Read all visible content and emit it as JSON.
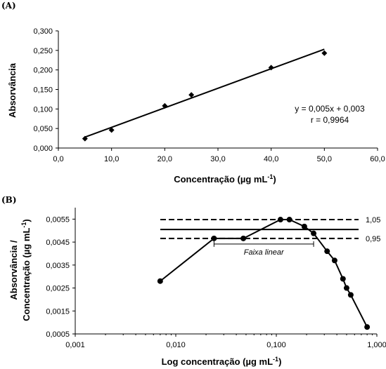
{
  "chart_data": [
    {
      "panel": "(A)",
      "type": "scatter",
      "xlabel": "Concentração (µg mL",
      "xlabel_sup": "-1",
      "xlabel_end": ")",
      "ylabel": "Absorvância",
      "xlim": [
        0,
        60
      ],
      "ylim": [
        0,
        0.3
      ],
      "x_ticks": [
        0,
        10,
        20,
        30,
        40,
        50,
        60
      ],
      "x_tick_labels": [
        "0,0",
        "10,0",
        "20,0",
        "30,0",
        "40,0",
        "50,0",
        "60,0"
      ],
      "y_ticks": [
        0,
        0.05,
        0.1,
        0.15,
        0.2,
        0.25,
        0.3
      ],
      "y_tick_labels": [
        "0,000",
        "0,050",
        "0,100",
        "0,150",
        "0,200",
        "0,250",
        "0,300"
      ],
      "series": [
        {
          "marker": "diamond",
          "x": [
            5,
            10,
            20,
            25,
            40,
            50
          ],
          "y": [
            0.024,
            0.046,
            0.108,
            0.136,
            0.206,
            0.243
          ]
        }
      ],
      "trendline": {
        "slope": 0.005,
        "intercept": 0.003,
        "x_range": [
          5,
          50
        ]
      },
      "annotations": [
        "y = 0,005x + 0,003",
        "r = 0,9964"
      ],
      "grid": false
    },
    {
      "panel": "(B)",
      "type": "line",
      "x_scale": "log",
      "xlabel": "Log concentração (µg mL",
      "xlabel_sup": "-1",
      "xlabel_end": ")",
      "ylabel_line1": "Absorvância /",
      "ylabel_line2": "Concentração (µg mL",
      "ylabel_sup": "-1",
      "ylabel_end": ")",
      "xlim": [
        0.001,
        1
      ],
      "ylim": [
        0.0005,
        0.006
      ],
      "x_ticks": [
        0.001,
        0.01,
        0.1,
        1
      ],
      "x_tick_labels": [
        "0,001",
        "0,010",
        "0,100",
        "1,000"
      ],
      "y_ticks": [
        0.0005,
        0.0015,
        0.0025,
        0.0035,
        0.0045,
        0.0055
      ],
      "y_tick_labels": [
        "0,0005",
        "0,0015",
        "0,0025",
        "0,0035",
        "0,0045",
        "0,0055"
      ],
      "series": [
        {
          "marker": "circle",
          "x": [
            0.007,
            0.024,
            0.047,
            0.11,
            0.135,
            0.19,
            0.235,
            0.32,
            0.38,
            0.46,
            0.5,
            0.55,
            0.8
          ],
          "y": [
            0.0028,
            0.00466,
            0.00466,
            0.00548,
            0.00548,
            0.00518,
            0.00488,
            0.0041,
            0.0037,
            0.0029,
            0.0025,
            0.0022,
            0.0008
          ]
        }
      ],
      "reference_lines": [
        {
          "y": 0.00548,
          "style": "dashed",
          "label": "1,05"
        },
        {
          "y": 0.00505,
          "style": "solid",
          "label": ""
        },
        {
          "y": 0.00466,
          "style": "dashed",
          "label": "0,95"
        }
      ],
      "range_bracket": {
        "x_range": [
          0.024,
          0.235
        ],
        "label": "Faixa linear"
      },
      "grid": false
    }
  ]
}
